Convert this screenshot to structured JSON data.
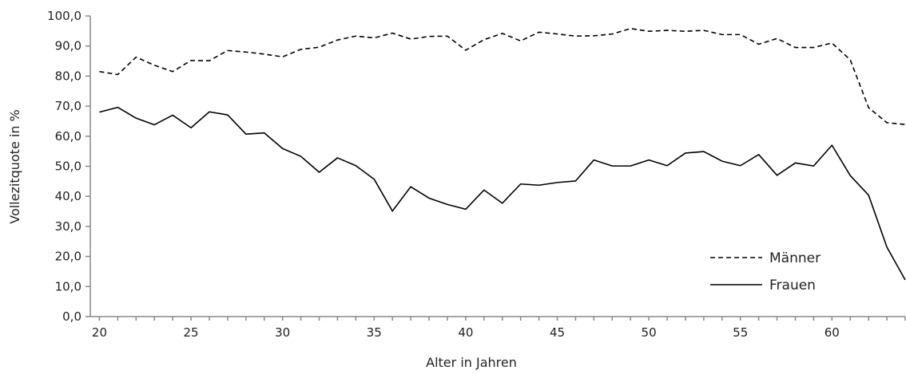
{
  "chart_data": {
    "type": "line",
    "xlabel": "Alter in Jahren",
    "ylabel": "Vollezitquote in %",
    "xlim": [
      19.5,
      64
    ],
    "ylim": [
      0,
      100
    ],
    "x_ticks": [
      20,
      25,
      30,
      35,
      40,
      45,
      50,
      55,
      60
    ],
    "x_tick_labels": [
      "20",
      "25",
      "30",
      "35",
      "40",
      "45",
      "50",
      "55",
      "60"
    ],
    "y_ticks": [
      0,
      10,
      20,
      30,
      40,
      50,
      60,
      70,
      80,
      90,
      100
    ],
    "y_tick_labels": [
      "0,0",
      "10,0",
      "20,0",
      "30,0",
      "40,0",
      "50,0",
      "60,0",
      "70,0",
      "80,0",
      "90,0",
      "100,0"
    ],
    "grid": false,
    "legend_position": "bottom-right",
    "x": [
      20,
      21,
      22,
      23,
      24,
      25,
      26,
      27,
      28,
      29,
      30,
      31,
      32,
      33,
      34,
      35,
      36,
      37,
      38,
      39,
      40,
      41,
      42,
      43,
      44,
      45,
      46,
      47,
      48,
      49,
      50,
      51,
      52,
      53,
      54,
      55,
      56,
      57,
      58,
      59,
      60,
      61,
      62,
      63,
      64
    ],
    "series": [
      {
        "name": "Männer",
        "style": "dashed",
        "color": "#000000",
        "values": [
          81.5,
          80.5,
          86.3,
          83.6,
          81.5,
          85.2,
          85.1,
          88.5,
          88.0,
          87.3,
          86.4,
          88.9,
          89.6,
          92.0,
          93.3,
          92.7,
          94.3,
          92.3,
          93.2,
          93.3,
          88.6,
          92.1,
          94.2,
          91.7,
          94.6,
          94.0,
          93.3,
          93.4,
          94.0,
          95.8,
          94.9,
          95.2,
          94.9,
          95.2,
          93.8,
          93.8,
          90.6,
          92.5,
          89.5,
          89.5,
          91.0,
          85.4,
          69.5,
          64.5,
          63.9
        ]
      },
      {
        "name": "Frauen",
        "style": "solid",
        "color": "#000000",
        "values": [
          68.0,
          69.6,
          66.0,
          63.8,
          67.0,
          62.8,
          68.1,
          67.1,
          60.7,
          61.1,
          55.9,
          53.3,
          48.0,
          52.8,
          50.2,
          45.7,
          35.1,
          43.2,
          39.4,
          37.3,
          35.7,
          42.1,
          37.7,
          44.1,
          43.7,
          44.6,
          45.1,
          52.1,
          50.1,
          50.1,
          52.1,
          50.2,
          54.4,
          54.9,
          51.7,
          50.2,
          53.9,
          47.0,
          51.1,
          50.1,
          57.0,
          46.9,
          40.4,
          23.1,
          12.2
        ]
      }
    ]
  }
}
